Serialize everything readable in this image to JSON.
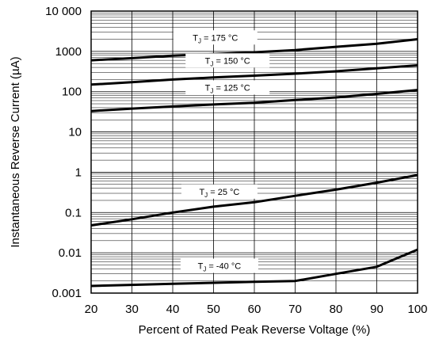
{
  "chart_data": {
    "type": "line",
    "xlabel": "Percent of Rated Peak Reverse Voltage (%)",
    "ylabel": "Instantaneous Reverse Current (µA)",
    "xlim": [
      20,
      100
    ],
    "ylim": [
      0.001,
      10000
    ],
    "yscale": "log",
    "grid": true,
    "x_ticks": [
      20,
      30,
      40,
      50,
      60,
      70,
      80,
      90,
      100
    ],
    "x_tick_labels": [
      "20",
      "30",
      "40",
      "50",
      "60",
      "70",
      "80",
      "90",
      "100"
    ],
    "y_ticks": [
      0.001,
      0.01,
      0.1,
      1,
      10,
      100,
      1000,
      10000
    ],
    "y_tick_labels": [
      "0.001",
      "0.01",
      "0.1",
      "1",
      "10",
      "100",
      "1000",
      "10 000"
    ],
    "series": [
      {
        "name": "175 °C",
        "label_sub": "J",
        "x": [
          20,
          30,
          40,
          50,
          60,
          70,
          80,
          90,
          100
        ],
        "values": [
          600,
          680,
          780,
          860,
          950,
          1080,
          1300,
          1550,
          2000
        ]
      },
      {
        "name": "150 °C",
        "label_sub": "J",
        "x": [
          20,
          30,
          40,
          50,
          60,
          70,
          80,
          90,
          100
        ],
        "values": [
          150,
          172,
          200,
          225,
          250,
          280,
          320,
          380,
          450
        ]
      },
      {
        "name": "125 °C",
        "label_sub": "J",
        "x": [
          20,
          30,
          40,
          50,
          60,
          70,
          80,
          90,
          100
        ],
        "values": [
          33,
          38,
          43,
          48,
          53,
          62,
          72,
          88,
          110
        ]
      },
      {
        "name": "25 °C",
        "label_sub": "J",
        "x": [
          20,
          30,
          40,
          50,
          60,
          70,
          80,
          90,
          100
        ],
        "values": [
          0.048,
          0.068,
          0.1,
          0.14,
          0.18,
          0.26,
          0.37,
          0.55,
          0.85
        ]
      },
      {
        "name": "-40 °C",
        "label_sub": "J",
        "x": [
          20,
          30,
          40,
          50,
          60,
          70,
          80,
          90,
          100
        ],
        "values": [
          0.0015,
          0.0016,
          0.0017,
          0.0018,
          0.0019,
          0.002,
          0.003,
          0.0045,
          0.012
        ]
      }
    ],
    "series_label_prefix": "T"
  }
}
